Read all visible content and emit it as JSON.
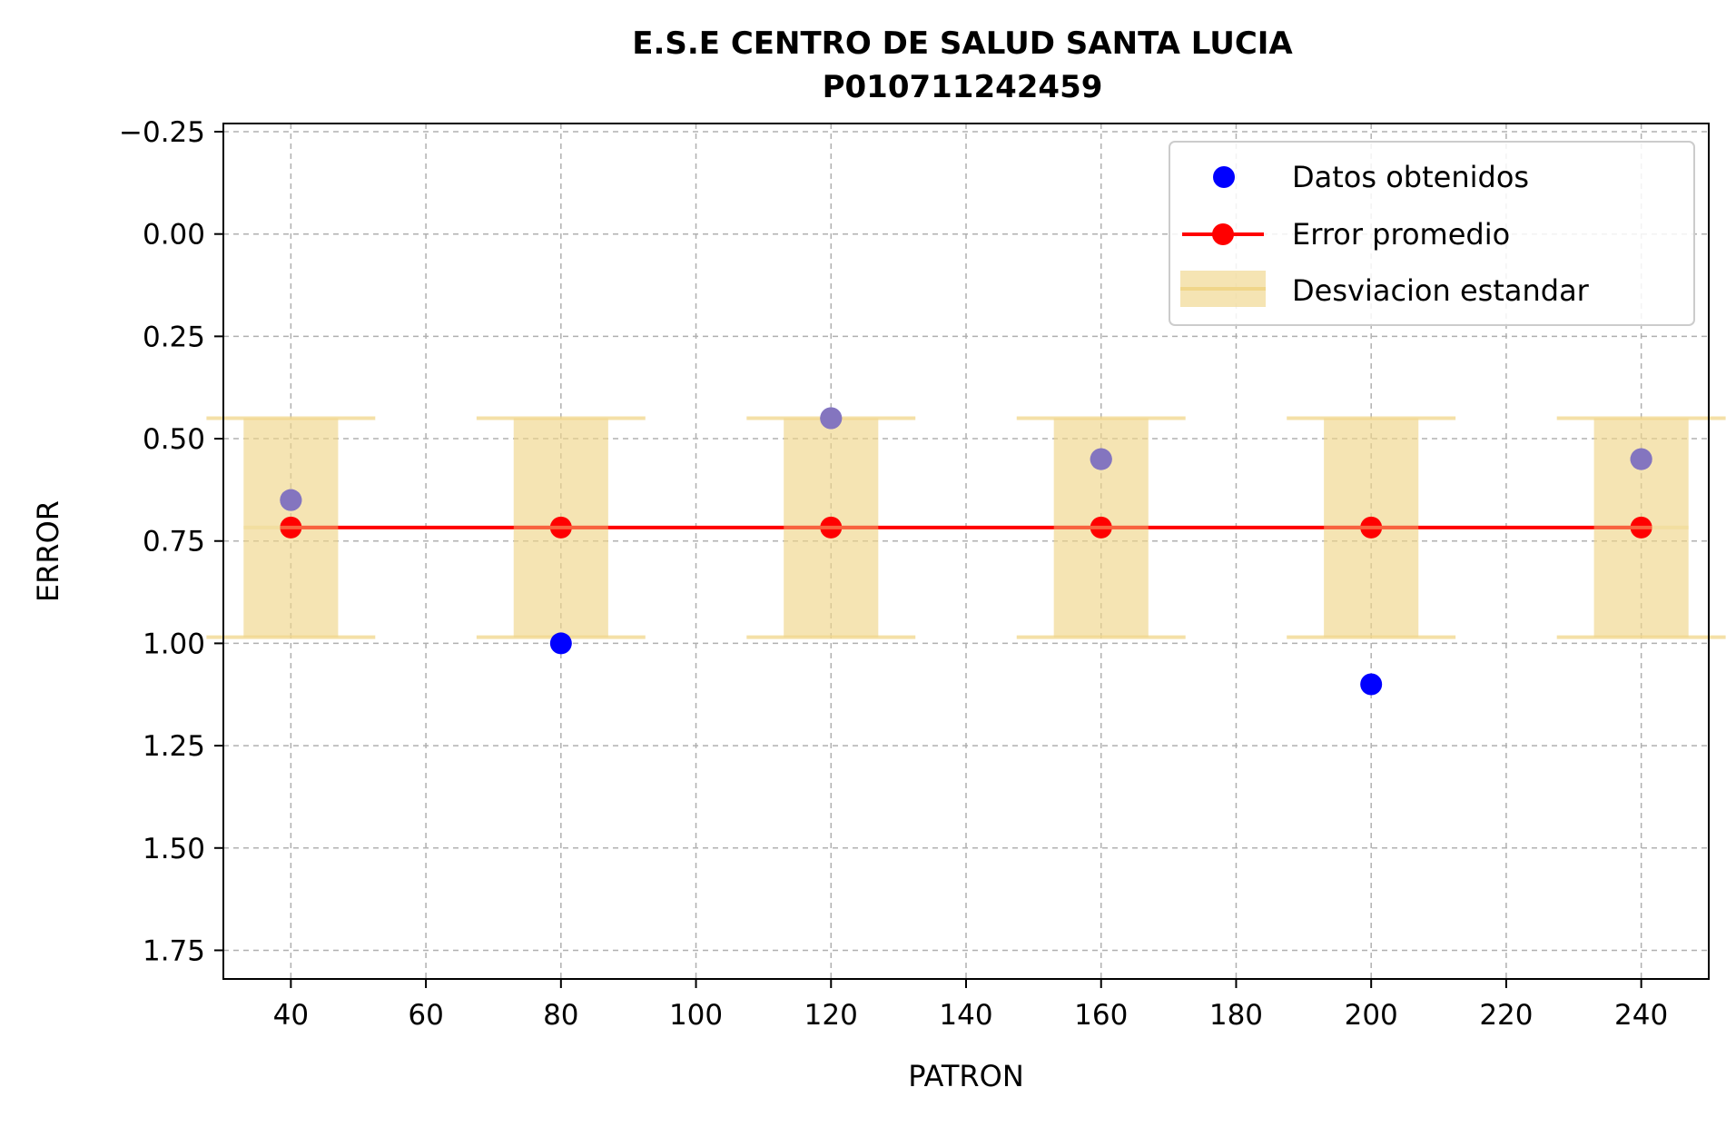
{
  "chart_data": {
    "type": "scatter",
    "title": "E.S.E CENTRO DE SALUD SANTA LUCIA",
    "subtitle": "P010711242459",
    "xlabel": "PATRON",
    "ylabel": "ERROR",
    "xlim": [
      30,
      250
    ],
    "ylim": [
      1.82,
      -0.27
    ],
    "y_inverted": true,
    "grid": true,
    "legend_position": "top-right",
    "x_ticks": [
      "40",
      "60",
      "80",
      "100",
      "120",
      "140",
      "160",
      "180",
      "200",
      "220",
      "240"
    ],
    "y_ticks": [
      "−0.25",
      "0.00",
      "0.25",
      "0.50",
      "0.75",
      "1.00",
      "1.25",
      "1.50",
      "1.75"
    ],
    "series": [
      {
        "name": "Datos obtenidos",
        "kind": "scatter",
        "color": "#0000ff",
        "points": [
          {
            "x": 40,
            "y": 0.65
          },
          {
            "x": 80,
            "y": 1.0
          },
          {
            "x": 120,
            "y": 0.45
          },
          {
            "x": 160,
            "y": 0.55
          },
          {
            "x": 200,
            "y": 1.1
          },
          {
            "x": 240,
            "y": 0.55
          }
        ]
      },
      {
        "name": "Error promedio",
        "kind": "line",
        "color": "#ff0000",
        "points": [
          {
            "x": 40,
            "y": 0.717
          },
          {
            "x": 80,
            "y": 0.717
          },
          {
            "x": 120,
            "y": 0.717
          },
          {
            "x": 160,
            "y": 0.717
          },
          {
            "x": 200,
            "y": 0.717
          },
          {
            "x": 240,
            "y": 0.717
          }
        ]
      },
      {
        "name": "Desviacion estandar",
        "kind": "errorbar",
        "color": "#f0d68a",
        "bars": [
          {
            "x": 40,
            "low": 0.45,
            "high": 0.985
          },
          {
            "x": 80,
            "low": 0.45,
            "high": 0.985
          },
          {
            "x": 120,
            "low": 0.45,
            "high": 0.985
          },
          {
            "x": 160,
            "low": 0.45,
            "high": 0.985
          },
          {
            "x": 200,
            "low": 0.45,
            "high": 0.985
          },
          {
            "x": 240,
            "low": 0.45,
            "high": 0.985
          }
        ]
      }
    ]
  }
}
